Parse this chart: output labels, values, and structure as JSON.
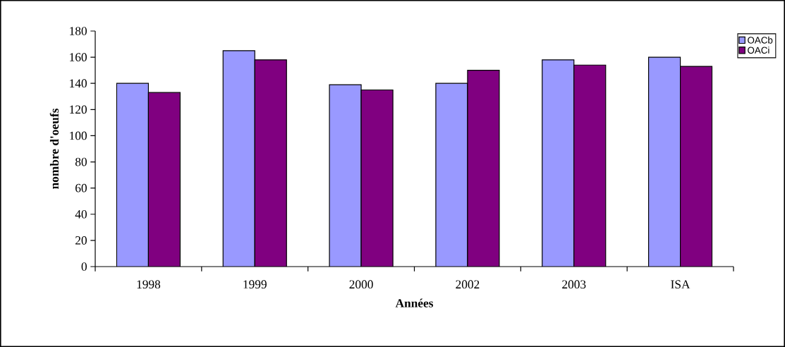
{
  "chart_data": {
    "type": "bar",
    "xlabel": "Années",
    "ylabel": "nombre d'oeufs",
    "categories": [
      "1998",
      "1999",
      "2000",
      "2002",
      "2003",
      "ISA"
    ],
    "series": [
      {
        "name": "OACb",
        "color": "#9999ff",
        "values": [
          140,
          165,
          139,
          140,
          158,
          160
        ]
      },
      {
        "name": "OACi",
        "color": "#800080",
        "values": [
          133,
          158,
          135,
          150,
          154,
          153
        ]
      }
    ],
    "ylim": [
      0,
      180
    ],
    "yticks": [
      0,
      20,
      40,
      60,
      80,
      100,
      120,
      140,
      160,
      180
    ],
    "grid": false,
    "legend": "top right"
  }
}
